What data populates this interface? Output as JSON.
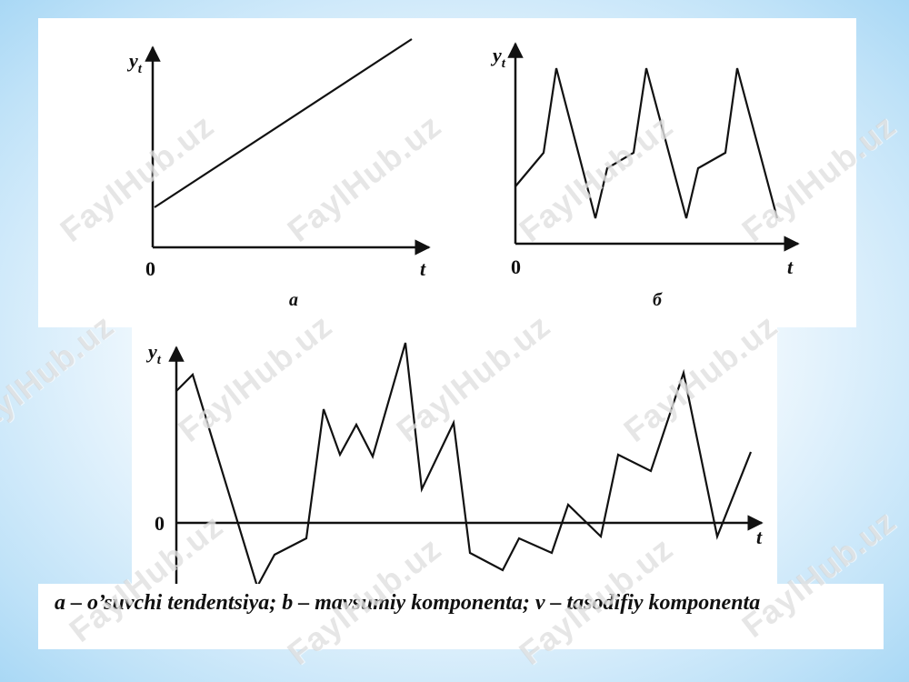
{
  "diagrams": {
    "a": {
      "panel_label": "a",
      "y_axis_label": "y",
      "y_axis_subscript": "t",
      "x_axis_label": "t",
      "origin_label": "0",
      "shape": "increasing linear trend"
    },
    "b": {
      "panel_label": "б",
      "y_axis_label": "y",
      "y_axis_subscript": "t",
      "x_axis_label": "t",
      "origin_label": "0",
      "shape": "periodic seasonal pattern with three peaks"
    },
    "v": {
      "y_axis_label": "y",
      "y_axis_subscript": "t",
      "x_axis_label": "t",
      "origin_label": "0",
      "shape": "irregular random fluctuations around zero"
    }
  },
  "caption": "a – o’suvchi tendentsiya; b – mavsumiy komponenta; v – tasodifiy komponenta",
  "watermark": "FaylHub.uz",
  "colors": {
    "line": "#111111",
    "panel_background": "#ffffff",
    "page_background": "#bfe2f8",
    "watermark": "#d2d2d2"
  }
}
